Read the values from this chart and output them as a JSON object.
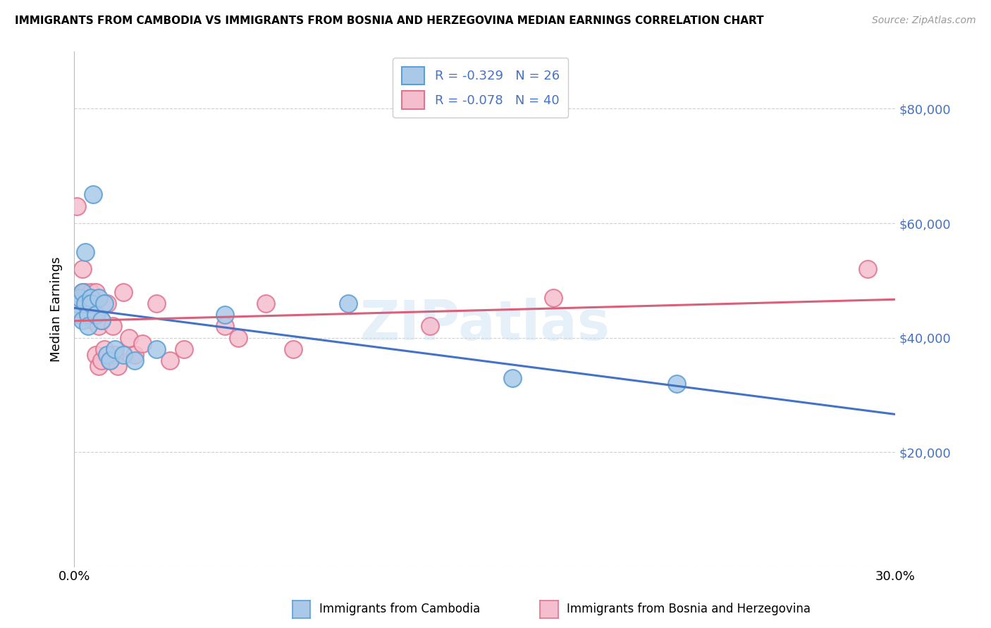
{
  "title": "IMMIGRANTS FROM CAMBODIA VS IMMIGRANTS FROM BOSNIA AND HERZEGOVINA MEDIAN EARNINGS CORRELATION CHART",
  "source": "Source: ZipAtlas.com",
  "ylabel": "Median Earnings",
  "xlim": [
    0.0,
    0.3
  ],
  "ylim": [
    0,
    90000
  ],
  "yticks": [
    0,
    20000,
    40000,
    60000,
    80000
  ],
  "ytick_labels": [
    "",
    "$20,000",
    "$40,000",
    "$60,000",
    "$80,000"
  ],
  "xticks": [
    0.0,
    0.05,
    0.1,
    0.15,
    0.2,
    0.25,
    0.3
  ],
  "xtick_labels": [
    "0.0%",
    "",
    "",
    "",
    "",
    "",
    "30.0%"
  ],
  "cambodia_color": "#aac9e8",
  "cambodia_edge": "#5b9fd4",
  "bosnia_color": "#f5bece",
  "bosnia_edge": "#e0748f",
  "trend_cambodia_color": "#4472c4",
  "trend_bosnia_color": "#d9607a",
  "R_cambodia": -0.329,
  "N_cambodia": 26,
  "R_bosnia": -0.078,
  "N_bosnia": 40,
  "legend_label_cambodia": "Immigrants from Cambodia",
  "legend_label_bosnia": "Immigrants from Bosnia and Herzegovina",
  "watermark": "ZIPatlas",
  "grid_color": "#d0d0d0",
  "cambodia_x": [
    0.001,
    0.002,
    0.002,
    0.003,
    0.003,
    0.004,
    0.004,
    0.005,
    0.005,
    0.006,
    0.006,
    0.007,
    0.008,
    0.009,
    0.01,
    0.011,
    0.012,
    0.013,
    0.015,
    0.018,
    0.022,
    0.03,
    0.055,
    0.1,
    0.16,
    0.22
  ],
  "cambodia_y": [
    46000,
    47000,
    44000,
    48000,
    43000,
    46000,
    55000,
    44000,
    42000,
    47000,
    46000,
    65000,
    44000,
    47000,
    43000,
    46000,
    37000,
    36000,
    38000,
    37000,
    36000,
    38000,
    44000,
    46000,
    33000,
    32000
  ],
  "bosnia_x": [
    0.001,
    0.001,
    0.002,
    0.002,
    0.003,
    0.003,
    0.004,
    0.004,
    0.005,
    0.005,
    0.006,
    0.006,
    0.007,
    0.007,
    0.008,
    0.008,
    0.009,
    0.009,
    0.01,
    0.01,
    0.011,
    0.012,
    0.013,
    0.014,
    0.015,
    0.016,
    0.018,
    0.02,
    0.022,
    0.025,
    0.03,
    0.035,
    0.04,
    0.055,
    0.06,
    0.07,
    0.08,
    0.13,
    0.175,
    0.29
  ],
  "bosnia_y": [
    46000,
    63000,
    47000,
    45000,
    48000,
    52000,
    46000,
    48000,
    45000,
    47000,
    44000,
    48000,
    45000,
    43000,
    48000,
    37000,
    42000,
    35000,
    43000,
    36000,
    38000,
    46000,
    36000,
    42000,
    37000,
    35000,
    48000,
    40000,
    37000,
    39000,
    46000,
    36000,
    38000,
    42000,
    40000,
    46000,
    38000,
    42000,
    47000,
    52000
  ]
}
